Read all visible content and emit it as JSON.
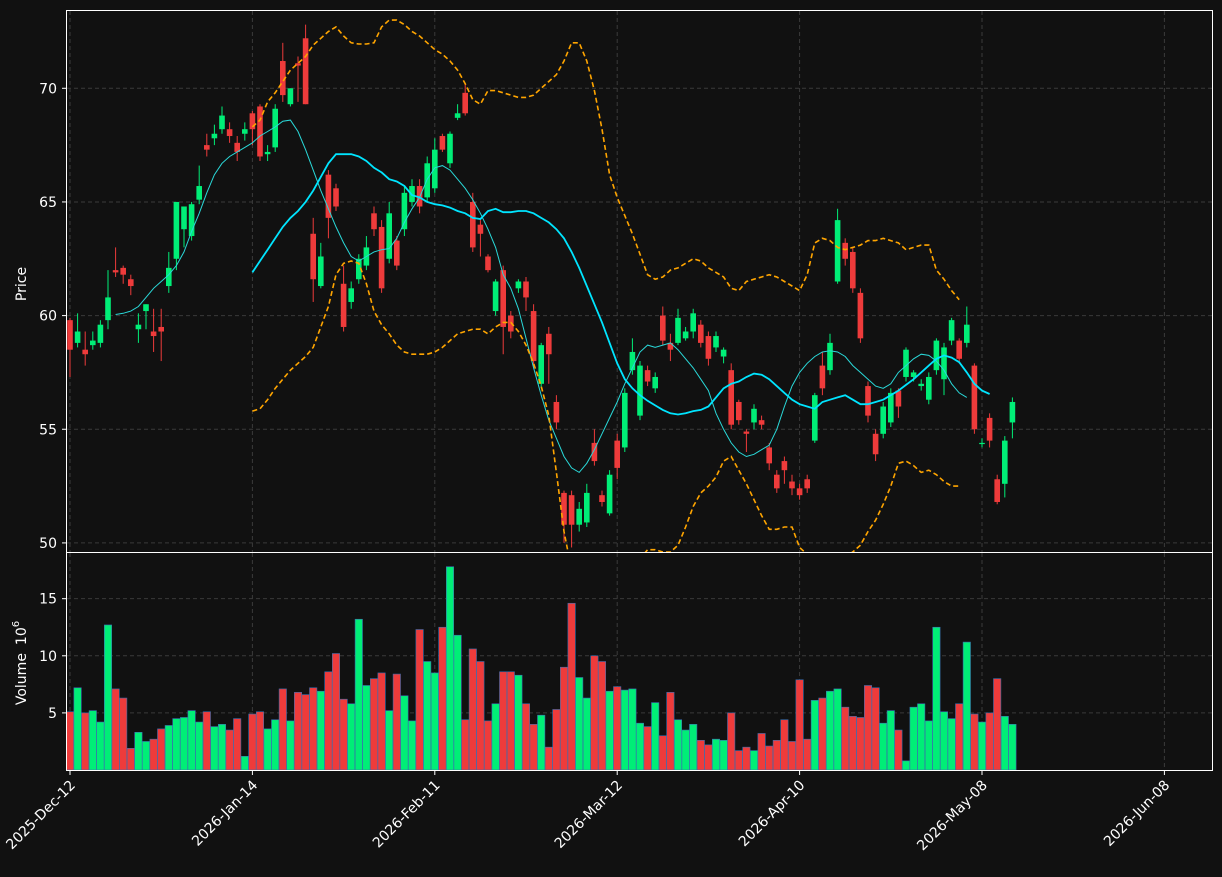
{
  "chart_data": {
    "type": "candlestick",
    "colors": {
      "background": "#111111",
      "grid": "#3a3a3a",
      "up": "#00ee77",
      "down": "#ee3b3b",
      "volume_edge": "#3b6fb0",
      "ma_fast": "#2ad9d9",
      "ma_slow": "#00e5ff",
      "bollinger": "#ffa500",
      "frame": "#ffffff"
    },
    "price_panel": {
      "ylabel": "Price",
      "ylim": [
        49.6,
        73.4
      ],
      "yticks": [
        50,
        55,
        60,
        65,
        70
      ]
    },
    "volume_panel": {
      "ylabel": "Volume",
      "ylabel_exponent": "10",
      "ylabel_power": "6",
      "ylim": [
        0,
        19
      ],
      "yticks": [
        5,
        10,
        15
      ]
    },
    "xaxis": {
      "ticks": [
        {
          "index": 0,
          "label": "2025-Dec-12"
        },
        {
          "index": 24,
          "label": "2026-Jan-14"
        },
        {
          "index": 48,
          "label": "2026-Feb-11"
        },
        {
          "index": 72,
          "label": "2026-Mar-12"
        },
        {
          "index": 96,
          "label": "2026-Apr-10"
        },
        {
          "index": 120,
          "label": "2026-May-08"
        },
        {
          "index": 144,
          "label": "2026-Jun-08"
        }
      ]
    },
    "candles": [
      [
        59.8,
        58.5,
        59.9,
        57.3,
        5.1
      ],
      [
        58.8,
        59.3,
        60.1,
        58.6,
        7.2
      ],
      [
        58.5,
        58.3,
        59.3,
        57.8,
        5.0
      ],
      [
        58.7,
        58.9,
        59.3,
        58.5,
        5.2
      ],
      [
        58.8,
        59.6,
        59.8,
        58.6,
        4.2
      ],
      [
        59.8,
        60.8,
        62.0,
        59.4,
        12.7
      ],
      [
        62.0,
        61.9,
        63.0,
        61.7,
        7.1
      ],
      [
        62.1,
        61.8,
        62.2,
        61.4,
        6.3
      ],
      [
        61.6,
        61.3,
        61.8,
        60.9,
        1.9
      ],
      [
        59.4,
        59.6,
        60.1,
        58.8,
        3.3
      ],
      [
        60.2,
        60.5,
        60.5,
        59.4,
        2.5
      ],
      [
        59.3,
        59.1,
        60.3,
        58.4,
        2.7
      ],
      [
        59.5,
        59.3,
        60.3,
        58.0,
        3.6
      ],
      [
        61.3,
        62.1,
        62.8,
        61.0,
        3.9
      ],
      [
        62.5,
        65.0,
        65.0,
        62.0,
        4.5
      ],
      [
        63.8,
        64.8,
        64.8,
        63.0,
        4.6
      ],
      [
        63.5,
        64.9,
        65.0,
        63.3,
        5.2
      ],
      [
        65.1,
        65.7,
        66.6,
        64.9,
        4.2
      ],
      [
        67.5,
        67.3,
        68.0,
        67.0,
        5.1
      ],
      [
        67.8,
        68.0,
        68.4,
        67.5,
        3.8
      ],
      [
        68.2,
        68.8,
        69.2,
        68.0,
        4.0
      ],
      [
        68.2,
        67.9,
        68.5,
        67.6,
        3.5
      ],
      [
        67.6,
        67.2,
        67.9,
        66.8,
        4.5
      ],
      [
        68.0,
        68.2,
        68.5,
        67.7,
        1.2
      ],
      [
        68.9,
        68.2,
        69.0,
        67.5,
        4.9
      ],
      [
        69.2,
        67.0,
        69.3,
        66.8,
        5.1
      ],
      [
        67.1,
        67.2,
        67.5,
        66.8,
        3.6
      ],
      [
        67.4,
        69.1,
        69.3,
        67.2,
        4.4
      ],
      [
        71.2,
        69.7,
        72.0,
        69.4,
        7.1
      ],
      [
        69.3,
        70.0,
        70.0,
        69.2,
        4.3
      ],
      [
        71.1,
        71.0,
        71.4,
        69.4,
        6.8
      ],
      [
        72.2,
        69.3,
        72.8,
        69.3,
        6.6
      ],
      [
        63.6,
        61.6,
        64.3,
        60.6,
        7.2
      ],
      [
        61.3,
        62.6,
        63.2,
        61.2,
        6.9
      ],
      [
        66.2,
        64.3,
        66.4,
        63.4,
        8.6
      ],
      [
        65.6,
        64.8,
        65.8,
        64.6,
        10.2
      ],
      [
        61.4,
        59.5,
        62.2,
        59.3,
        6.2
      ],
      [
        60.6,
        61.2,
        61.5,
        60.3,
        5.8
      ],
      [
        61.6,
        62.5,
        62.7,
        61.4,
        13.2
      ],
      [
        62.2,
        63.0,
        63.5,
        62.0,
        7.4
      ],
      [
        64.5,
        63.8,
        64.8,
        63.5,
        8.0
      ],
      [
        63.9,
        61.2,
        64.2,
        61.0,
        8.5
      ],
      [
        62.5,
        64.5,
        65.0,
        62.3,
        5.2
      ],
      [
        63.3,
        62.2,
        63.5,
        62.0,
        8.4
      ],
      [
        63.8,
        65.4,
        65.7,
        63.5,
        6.5
      ],
      [
        65.0,
        65.7,
        66.0,
        64.8,
        4.3
      ],
      [
        65.7,
        64.8,
        66.0,
        64.5,
        12.3
      ],
      [
        65.2,
        66.7,
        67.0,
        65.0,
        9.5
      ],
      [
        65.6,
        67.3,
        67.8,
        65.4,
        8.5
      ],
      [
        67.9,
        67.3,
        68.0,
        67.2,
        12.5
      ],
      [
        66.7,
        68.0,
        68.1,
        66.5,
        17.8
      ],
      [
        68.7,
        68.9,
        69.3,
        68.6,
        11.8
      ],
      [
        69.8,
        68.9,
        70.2,
        68.8,
        4.4
      ],
      [
        65.0,
        63.0,
        65.4,
        62.8,
        10.6
      ],
      [
        64.0,
        63.6,
        64.2,
        62.6,
        9.5
      ],
      [
        62.6,
        62.0,
        62.7,
        61.9,
        4.3
      ],
      [
        60.2,
        61.5,
        61.6,
        60.0,
        5.8
      ],
      [
        62.0,
        59.5,
        62.2,
        58.3,
        8.6
      ],
      [
        60.0,
        59.3,
        60.2,
        59.0,
        8.6
      ],
      [
        61.2,
        61.5,
        61.6,
        61.0,
        8.3
      ],
      [
        61.5,
        60.8,
        61.7,
        60.2,
        5.8
      ],
      [
        60.2,
        58.0,
        60.5,
        57.7,
        4.0
      ],
      [
        57.0,
        58.7,
        58.8,
        56.8,
        4.8
      ],
      [
        59.2,
        58.3,
        59.5,
        57.0,
        2.0
      ],
      [
        56.2,
        55.3,
        56.5,
        55.0,
        5.3
      ],
      [
        52.2,
        50.8,
        52.3,
        50.0,
        9.0
      ],
      [
        52.1,
        50.8,
        52.3,
        49.8,
        14.6
      ],
      [
        50.8,
        51.5,
        51.8,
        50.5,
        8.1
      ],
      [
        50.9,
        52.2,
        52.6,
        50.7,
        6.3
      ],
      [
        54.4,
        53.6,
        55.0,
        53.4,
        10.0
      ],
      [
        52.1,
        51.8,
        52.3,
        51.6,
        9.5
      ],
      [
        51.3,
        53.0,
        53.2,
        51.2,
        6.9
      ],
      [
        54.5,
        53.3,
        54.8,
        52.8,
        7.3
      ],
      [
        54.2,
        56.6,
        56.8,
        54.0,
        7.0
      ],
      [
        57.6,
        58.4,
        59.0,
        57.4,
        7.1
      ],
      [
        55.6,
        57.8,
        58.0,
        55.4,
        4.1
      ],
      [
        57.6,
        57.1,
        57.8,
        56.9,
        3.8
      ],
      [
        56.8,
        57.3,
        57.5,
        56.6,
        5.9
      ],
      [
        60.0,
        58.9,
        60.4,
        58.7,
        3.0
      ],
      [
        58.8,
        58.5,
        59.2,
        58.0,
        6.8
      ],
      [
        58.8,
        59.9,
        60.3,
        58.7,
        4.4
      ],
      [
        59.0,
        59.3,
        59.5,
        58.9,
        3.5
      ],
      [
        59.3,
        60.1,
        60.3,
        59.0,
        4.0
      ],
      [
        59.6,
        58.8,
        59.8,
        58.6,
        2.6
      ],
      [
        59.1,
        58.1,
        59.3,
        57.8,
        2.2
      ],
      [
        58.6,
        59.1,
        59.3,
        58.4,
        2.7
      ],
      [
        58.2,
        58.5,
        58.6,
        57.9,
        2.6
      ],
      [
        57.6,
        55.2,
        57.9,
        55.0,
        5.0
      ],
      [
        56.2,
        55.4,
        56.3,
        55.2,
        1.7
      ],
      [
        54.9,
        54.8,
        55.0,
        54.0,
        2.0
      ],
      [
        55.3,
        55.9,
        56.1,
        55.0,
        1.7
      ],
      [
        55.4,
        55.2,
        55.6,
        55.0,
        3.2
      ],
      [
        54.2,
        53.5,
        54.4,
        53.2,
        2.1
      ],
      [
        53.0,
        52.4,
        53.2,
        52.2,
        2.6
      ],
      [
        53.6,
        53.2,
        53.8,
        52.6,
        4.4
      ],
      [
        52.7,
        52.4,
        53.0,
        52.1,
        2.5
      ],
      [
        52.4,
        52.1,
        52.6,
        51.9,
        7.9
      ],
      [
        52.8,
        52.4,
        53.0,
        52.2,
        2.7
      ],
      [
        54.5,
        56.5,
        56.6,
        54.4,
        6.1
      ],
      [
        57.8,
        56.8,
        58.4,
        56.5,
        6.3
      ],
      [
        57.6,
        58.8,
        59.2,
        57.4,
        6.9
      ],
      [
        61.5,
        64.2,
        64.7,
        61.4,
        7.1
      ],
      [
        63.2,
        62.5,
        63.4,
        62.2,
        5.5
      ],
      [
        62.8,
        61.2,
        63.0,
        61.0,
        4.7
      ],
      [
        61.0,
        59.0,
        61.2,
        58.8,
        4.6
      ],
      [
        56.9,
        55.6,
        57.1,
        55.3,
        7.4
      ],
      [
        54.8,
        53.9,
        55.0,
        53.6,
        7.2
      ],
      [
        54.8,
        56.0,
        56.2,
        54.6,
        4.1
      ],
      [
        55.3,
        56.6,
        56.8,
        55.1,
        5.2
      ],
      [
        56.7,
        56.0,
        56.8,
        55.5,
        3.5
      ],
      [
        57.3,
        58.5,
        58.6,
        57.1,
        0.8
      ],
      [
        57.3,
        57.5,
        57.6,
        57.1,
        5.5
      ],
      [
        56.9,
        57.0,
        57.2,
        56.7,
        5.8
      ],
      [
        56.3,
        57.3,
        57.5,
        56.1,
        4.3
      ],
      [
        57.6,
        58.9,
        59.0,
        57.4,
        12.5
      ],
      [
        57.2,
        58.6,
        58.8,
        56.5,
        5.1
      ],
      [
        58.9,
        59.8,
        59.9,
        58.7,
        4.5
      ],
      [
        58.9,
        58.1,
        59.0,
        57.9,
        5.8
      ],
      [
        58.8,
        59.6,
        60.4,
        58.6,
        11.2
      ],
      [
        57.8,
        55.0,
        57.9,
        54.8,
        4.9
      ],
      [
        54.4,
        54.4,
        54.6,
        54.2,
        4.2
      ],
      [
        55.5,
        54.5,
        55.7,
        54.2,
        5.0
      ],
      [
        52.8,
        51.8,
        53.0,
        51.7,
        8.0
      ],
      [
        52.6,
        54.5,
        54.7,
        52.0,
        4.7
      ],
      [
        55.3,
        56.2,
        56.4,
        54.6,
        4.0
      ]
    ],
    "series": [
      {
        "style": "ma_fast",
        "start": 6,
        "values": [
          60.05,
          60.1,
          60.2,
          60.4,
          60.8,
          61.2,
          61.5,
          61.8,
          62.2,
          62.8,
          63.7,
          64.5,
          65.4,
          66.2,
          66.7,
          67.0,
          67.2,
          67.4,
          67.6,
          67.9,
          68.1,
          68.3,
          68.55,
          68.6,
          68.1,
          67.3,
          66.4,
          65.5,
          64.7,
          63.9,
          63.2,
          62.6,
          62.4,
          62.6,
          62.8,
          62.9,
          62.95,
          63.4,
          64.1,
          64.7,
          65.2,
          66.0,
          66.5,
          66.6,
          66.4,
          66.0,
          65.6,
          65.1,
          64.5,
          63.8,
          63.0,
          61.8,
          61.2,
          60.3,
          59.0,
          57.7,
          56.5,
          55.4,
          54.6,
          53.8,
          53.3,
          53.1,
          53.5,
          54.1,
          54.8,
          55.5,
          56.2,
          57.0,
          57.7,
          58.4,
          58.7,
          58.6,
          58.7,
          58.8,
          58.5,
          58.1,
          57.7,
          57.2,
          56.7,
          55.7,
          55.0,
          54.4,
          54.0,
          53.8,
          53.9,
          54.1,
          54.3,
          55.0,
          56.0,
          56.9,
          57.5,
          57.9,
          58.2,
          58.4,
          58.45,
          58.4,
          58.2,
          57.8,
          57.5,
          57.2,
          56.9,
          56.8,
          57.0,
          57.5,
          57.8,
          58.1,
          58.3,
          58.25,
          58.0,
          57.6,
          57.0,
          56.6,
          56.4
        ]
      },
      {
        "style": "ma_slow",
        "start": 24,
        "values": [
          61.9,
          62.4,
          62.9,
          63.4,
          63.9,
          64.3,
          64.6,
          65.0,
          65.5,
          66.1,
          66.7,
          67.1,
          67.1,
          67.1,
          67.0,
          66.8,
          66.5,
          66.3,
          66.0,
          65.9,
          65.7,
          65.3,
          65.2,
          65.0,
          64.9,
          64.85,
          64.75,
          64.6,
          64.5,
          64.3,
          64.25,
          64.6,
          64.7,
          64.55,
          64.55,
          64.6,
          64.6,
          64.5,
          64.3,
          64.1,
          63.8,
          63.4,
          62.8,
          62.1,
          61.3,
          60.5,
          59.7,
          58.8,
          57.9,
          57.2,
          56.8,
          56.5,
          56.25,
          56.05,
          55.85,
          55.7,
          55.65,
          55.7,
          55.8,
          55.85,
          56.0,
          56.4,
          56.8,
          57.0,
          57.1,
          57.3,
          57.45,
          57.4,
          57.2,
          56.9,
          56.6,
          56.3,
          56.1,
          56.0,
          55.9,
          56.2,
          56.3,
          56.4,
          56.5,
          56.3,
          56.1,
          56.1,
          56.2,
          56.3,
          56.5,
          56.7,
          56.95,
          57.2,
          57.5,
          57.8,
          58.1,
          58.25,
          58.15,
          57.95,
          57.5,
          57.0,
          56.7,
          56.55
        ]
      },
      {
        "style": "bollinger",
        "start": 24,
        "values": [
          68.3,
          68.6,
          69.4,
          69.8,
          70.3,
          70.8,
          71.1,
          71.4,
          71.9,
          72.2,
          72.5,
          72.7,
          72.3,
          72.0,
          71.95,
          71.95,
          72.0,
          72.7,
          73.0,
          73.0,
          72.8,
          72.5,
          72.3,
          72.0,
          71.7,
          71.5,
          71.2,
          70.8,
          70.2,
          69.5,
          69.3,
          69.9,
          69.9,
          69.8,
          69.7,
          69.6,
          69.6,
          69.7,
          70.0,
          70.3,
          70.6,
          71.2,
          72.0,
          72.0,
          71.2,
          69.9,
          68.2,
          66.2,
          65.2,
          64.4,
          63.6,
          62.7,
          61.8,
          61.6,
          61.7,
          62.0,
          62.1,
          62.3,
          62.5,
          62.4,
          62.1,
          61.9,
          61.7,
          61.2,
          61.1,
          61.5,
          61.6,
          61.7,
          61.8,
          61.7,
          61.5,
          61.3,
          61.1,
          61.8,
          63.2,
          63.4,
          63.3,
          63.0,
          62.9,
          63.0,
          63.1,
          63.3,
          63.3,
          63.4,
          63.3,
          63.2,
          62.9,
          63.0,
          63.1,
          63.1,
          62.0,
          61.6,
          61.1,
          60.7
        ]
      },
      {
        "style": "bollinger",
        "start": 24,
        "values": [
          55.8,
          55.9,
          56.3,
          56.8,
          57.2,
          57.6,
          57.9,
          58.2,
          58.6,
          59.5,
          60.4,
          61.8,
          62.3,
          62.4,
          62.3,
          61.4,
          60.2,
          59.6,
          59.2,
          58.7,
          58.4,
          58.3,
          58.3,
          58.3,
          58.4,
          58.6,
          58.9,
          59.2,
          59.3,
          59.4,
          59.4,
          59.2,
          59.5,
          59.7,
          59.7,
          59.3,
          58.7,
          57.9,
          56.9,
          55.6,
          53.1,
          50.5,
          48.8,
          48.2,
          47.8,
          47.5,
          47.5,
          47.6,
          47.8,
          48.2,
          48.7,
          49.3,
          49.7,
          49.7,
          49.6,
          49.6,
          49.9,
          50.7,
          51.6,
          52.2,
          52.5,
          52.9,
          53.6,
          53.8,
          53.2,
          52.6,
          51.9,
          51.2,
          50.6,
          50.6,
          50.7,
          50.7,
          49.8,
          49.5,
          49.4,
          49.3,
          49.3,
          49.2,
          49.4,
          49.6,
          49.9,
          50.5,
          51.0,
          51.7,
          52.5,
          53.5,
          53.6,
          53.4,
          53.1,
          53.2,
          53.0,
          52.7,
          52.5,
          52.5
        ]
      }
    ]
  }
}
